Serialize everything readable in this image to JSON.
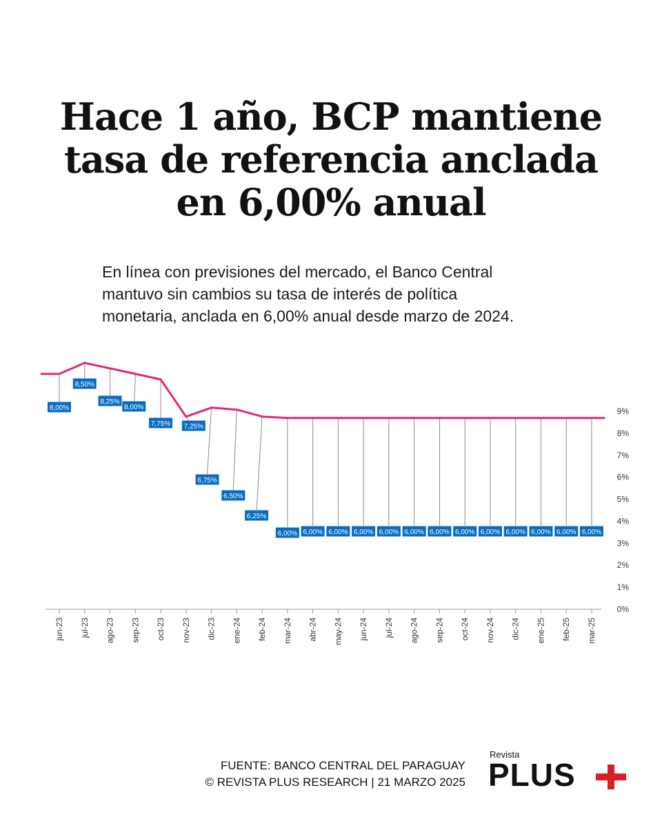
{
  "header": {
    "title_lines": [
      "Hace 1 año, BCP mantiene",
      "tasa de referencia anclada",
      "en 6,00% anual"
    ],
    "subtitle_lines": [
      "En línea con previsiones del mercado, el Banco Central",
      "mantuvo sin cambios su tasa de interés de política",
      "monetaria, anclada en 6,00% anual desde marzo de 2024."
    ]
  },
  "chart_data": {
    "type": "line",
    "categories": [
      "jun-23",
      "jul-23",
      "ago-23",
      "sep-23",
      "oct-23",
      "nov-23",
      "dic-23",
      "ene-24",
      "feb-24",
      "mar-24",
      "abr-24",
      "may-24",
      "jun-24",
      "jul-24",
      "ago-24",
      "sep-24",
      "oct-24",
      "nov-24",
      "dic-24",
      "ene-25",
      "feb-25",
      "mar-25"
    ],
    "values": [
      8.0,
      8.5,
      8.25,
      8.0,
      7.75,
      7.25,
      6.75,
      6.5,
      6.25,
      6.0,
      6.0,
      6.0,
      6.0,
      6.0,
      6.0,
      6.0,
      6.0,
      6.0,
      6.0,
      6.0,
      6.0,
      6.0
    ],
    "data_labels": [
      "8,00%",
      "8,50%",
      "8,25%",
      "8,00%",
      "7,75%",
      "7,25%",
      "6,75%",
      "6,50%",
      "6,25%",
      "6,00%",
      "6,00%",
      "6,00%",
      "6,00%",
      "6,00%",
      "6,00%",
      "6,00%",
      "6,00%",
      "6,00%",
      "6,00%",
      "6,00%",
      "6,00%",
      "6,00%"
    ],
    "y_ticks": [
      "0%",
      "1%",
      "2%",
      "3%",
      "4%",
      "5%",
      "6%",
      "7%",
      "8%",
      "9%"
    ],
    "ylim": [
      0,
      9
    ],
    "line_color": "#e0277b",
    "label_color": "#0a6cc0",
    "axis_position": "right",
    "grid": false
  },
  "footer": {
    "source": "FUENTE: BANCO CENTRAL DEL PARAGUAY",
    "credit": "© REVISTA PLUS RESEARCH | 21 MARZO 2025"
  },
  "logo": {
    "small": "Revista",
    "big": "PLUS",
    "plus_color": "#d71f26"
  }
}
